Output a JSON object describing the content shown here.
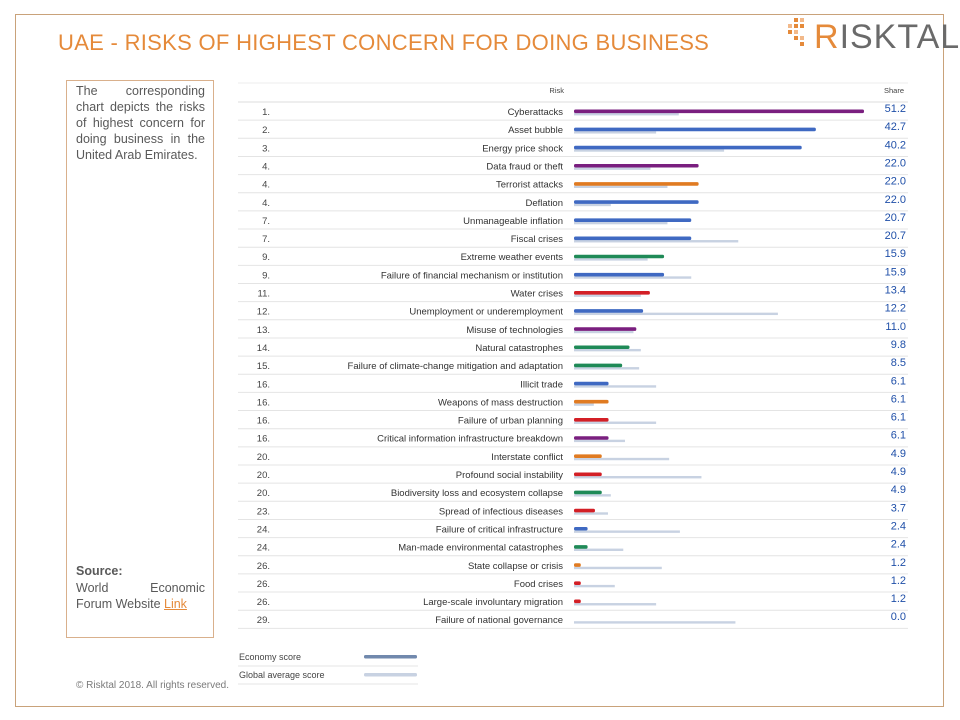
{
  "header": {
    "title": "UAE - RISKS OF HIGHEST CONCERN FOR DOING BUSINESS",
    "logo_text": "RISKTAL",
    "logo_initial": "R",
    "logo_rest": "ISKTAL"
  },
  "sidebar": {
    "description": "The corresponding chart depicts the risks of highest concern for doing business in the United Arab Emirates.",
    "source_label": "Source:",
    "source_text": "World Economic Forum Website ",
    "source_link": "Link"
  },
  "footer": {
    "copyright": "© Risktal 2018. All rights reserved."
  },
  "colors": {
    "economic": "#3f69c2",
    "technological": "#7a1f7f",
    "geopolitical": "#e07b22",
    "environmental": "#1f8a57",
    "societal": "#d31f26",
    "global_avg": "#c8d2e2",
    "legend_economy": "#7189ad",
    "value_text": "#1f4fa8",
    "accent": "#e58a3a"
  },
  "chart_data": {
    "type": "bar",
    "column_headers": {
      "risk": "Risk",
      "share": "Share"
    },
    "x_range": [
      0,
      51.2
    ],
    "series": [
      {
        "name": "Economy score"
      },
      {
        "name": "Global average score"
      }
    ],
    "rows": [
      {
        "rank": "1.",
        "risk": "Cyberattacks",
        "share": "51.2",
        "economy": 51.2,
        "global": 18.5,
        "category": "technological"
      },
      {
        "rank": "2.",
        "risk": "Asset bubble",
        "share": "42.7",
        "economy": 42.7,
        "global": 14.5,
        "category": "economic"
      },
      {
        "rank": "3.",
        "risk": "Energy price shock",
        "share": "40.2",
        "economy": 40.2,
        "global": 26.5,
        "category": "economic"
      },
      {
        "rank": "4.",
        "risk": "Data fraud or theft",
        "share": "22.0",
        "economy": 22.0,
        "global": 13.5,
        "category": "technological"
      },
      {
        "rank": "4.",
        "risk": "Terrorist attacks",
        "share": "22.0",
        "economy": 22.0,
        "global": 16.5,
        "category": "geopolitical"
      },
      {
        "rank": "4.",
        "risk": "Deflation",
        "share": "22.0",
        "economy": 22.0,
        "global": 6.5,
        "category": "economic"
      },
      {
        "rank": "7.",
        "risk": "Unmanageable inflation",
        "share": "20.7",
        "economy": 20.7,
        "global": 16.5,
        "category": "economic"
      },
      {
        "rank": "7.",
        "risk": "Fiscal crises",
        "share": "20.7",
        "economy": 20.7,
        "global": 29.0,
        "category": "economic"
      },
      {
        "rank": "9.",
        "risk": "Extreme weather events",
        "share": "15.9",
        "economy": 15.9,
        "global": 13.0,
        "category": "environmental"
      },
      {
        "rank": "9.",
        "risk": "Failure of financial mechanism or institution",
        "share": "15.9",
        "economy": 15.9,
        "global": 20.7,
        "category": "economic"
      },
      {
        "rank": "11.",
        "risk": "Water crises",
        "share": "13.4",
        "economy": 13.4,
        "global": 11.8,
        "category": "societal"
      },
      {
        "rank": "12.",
        "risk": "Unemployment or underemployment",
        "share": "12.2",
        "economy": 12.2,
        "global": 36.0,
        "category": "economic"
      },
      {
        "rank": "13.",
        "risk": "Misuse of technologies",
        "share": "11.0",
        "economy": 11.0,
        "global": 10.5,
        "category": "technological"
      },
      {
        "rank": "14.",
        "risk": "Natural catastrophes",
        "share": "9.8",
        "economy": 9.8,
        "global": 11.8,
        "category": "environmental"
      },
      {
        "rank": "15.",
        "risk": "Failure of climate-change mitigation and adaptation",
        "share": "8.5",
        "economy": 8.5,
        "global": 11.5,
        "category": "environmental"
      },
      {
        "rank": "16.",
        "risk": "Illicit trade",
        "share": "6.1",
        "economy": 6.1,
        "global": 14.5,
        "category": "economic"
      },
      {
        "rank": "16.",
        "risk": "Weapons of mass destruction",
        "share": "6.1",
        "economy": 6.1,
        "global": 3.5,
        "category": "geopolitical"
      },
      {
        "rank": "16.",
        "risk": "Failure of urban planning",
        "share": "6.1",
        "economy": 6.1,
        "global": 14.5,
        "category": "societal"
      },
      {
        "rank": "16.",
        "risk": "Critical information infrastructure breakdown",
        "share": "6.1",
        "economy": 6.1,
        "global": 9.0,
        "category": "technological"
      },
      {
        "rank": "20.",
        "risk": "Interstate conflict",
        "share": "4.9",
        "economy": 4.9,
        "global": 16.8,
        "category": "geopolitical"
      },
      {
        "rank": "20.",
        "risk": "Profound social instability",
        "share": "4.9",
        "economy": 4.9,
        "global": 22.5,
        "category": "societal"
      },
      {
        "rank": "20.",
        "risk": "Biodiversity loss and ecosystem collapse",
        "share": "4.9",
        "economy": 4.9,
        "global": 6.5,
        "category": "environmental"
      },
      {
        "rank": "23.",
        "risk": "Spread of infectious diseases",
        "share": "3.7",
        "economy": 3.7,
        "global": 6.0,
        "category": "societal"
      },
      {
        "rank": "24.",
        "risk": "Failure of critical infrastructure",
        "share": "2.4",
        "economy": 2.4,
        "global": 18.7,
        "category": "economic"
      },
      {
        "rank": "24.",
        "risk": "Man-made environmental catastrophes",
        "share": "2.4",
        "economy": 2.4,
        "global": 8.7,
        "category": "environmental"
      },
      {
        "rank": "26.",
        "risk": "State collapse or crisis",
        "share": "1.2",
        "economy": 1.2,
        "global": 15.5,
        "category": "geopolitical"
      },
      {
        "rank": "26.",
        "risk": "Food crises",
        "share": "1.2",
        "economy": 1.2,
        "global": 7.2,
        "category": "societal"
      },
      {
        "rank": "26.",
        "risk": "Large-scale involuntary migration",
        "share": "1.2",
        "economy": 1.2,
        "global": 14.5,
        "category": "societal"
      },
      {
        "rank": "29.",
        "risk": "Failure of national governance",
        "share": "0.0",
        "economy": 0.0,
        "global": 28.5,
        "category": "geopolitical"
      }
    ],
    "legend": [
      {
        "label": "Economy score",
        "color": "#7189ad"
      },
      {
        "label": "Global average score",
        "color": "#c8d2e2"
      }
    ]
  }
}
